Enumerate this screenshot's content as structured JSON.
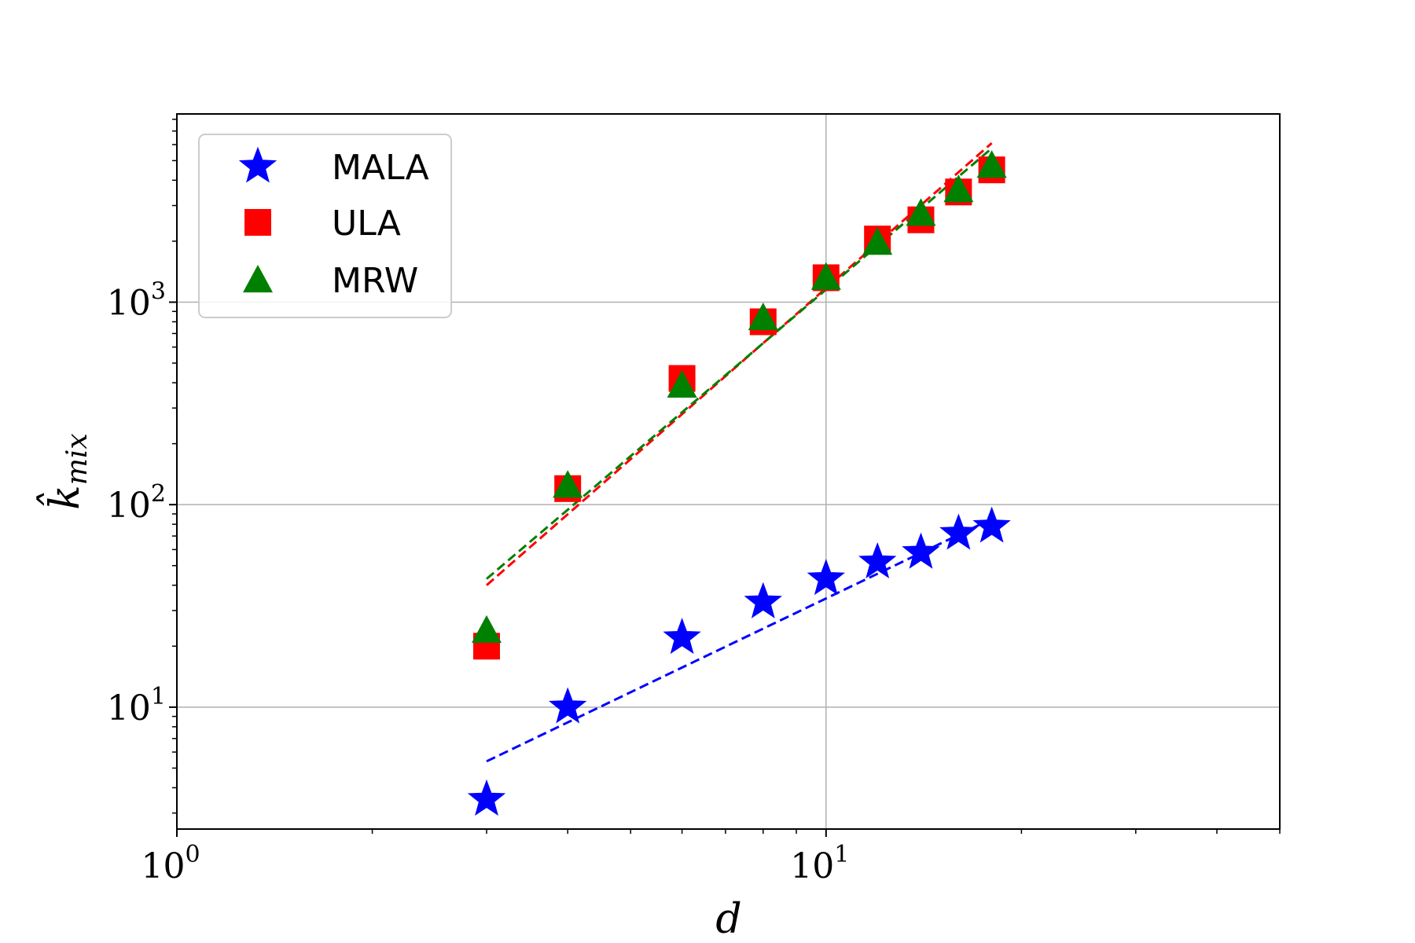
{
  "chart_data": {
    "type": "scatter",
    "xscale": "log",
    "yscale": "log",
    "xlabel": "d",
    "ylabel": "k̂",
    "ylabel_sub": "mix",
    "xlim": [
      1,
      50
    ],
    "ylim": [
      2.5,
      8500
    ],
    "grid": true,
    "legend_position": "top-left",
    "x_ticks": [
      {
        "value": 1,
        "base": "10",
        "exp": "0"
      },
      {
        "value": 10,
        "base": "10",
        "exp": "1"
      }
    ],
    "y_ticks": [
      {
        "value": 10,
        "base": "10",
        "exp": "1"
      },
      {
        "value": 100,
        "base": "10",
        "exp": "2"
      },
      {
        "value": 1000,
        "base": "10",
        "exp": "3"
      }
    ],
    "x_minor_ticks": [
      2,
      3,
      4,
      5,
      6,
      7,
      8,
      9,
      20,
      30,
      40,
      50
    ],
    "y_minor_ticks": [
      3,
      4,
      5,
      6,
      7,
      8,
      9,
      20,
      30,
      40,
      50,
      60,
      70,
      80,
      90,
      200,
      300,
      400,
      500,
      600,
      700,
      800,
      900,
      2000,
      3000,
      4000,
      5000,
      6000,
      7000,
      8000
    ],
    "series": [
      {
        "name": "MALA",
        "marker": "star",
        "color": "#0000ff",
        "x": [
          3,
          4,
          6,
          8,
          10,
          12,
          14,
          16,
          18
        ],
        "y": [
          3.5,
          10,
          22,
          33,
          43,
          52,
          58,
          72,
          78
        ],
        "fit": {
          "x": [
            3,
            18
          ],
          "y": [
            5.4,
            85
          ]
        }
      },
      {
        "name": "ULA",
        "marker": "square",
        "color": "#ff0000",
        "x": [
          3,
          4,
          6,
          8,
          10,
          12,
          14,
          16,
          18
        ],
        "y": [
          20,
          120,
          420,
          800,
          1320,
          2050,
          2550,
          3500,
          4500
        ],
        "fit": {
          "x": [
            3,
            18
          ],
          "y": [
            40,
            6100
          ]
        }
      },
      {
        "name": "MRW",
        "marker": "triangle",
        "color": "#008000",
        "x": [
          3,
          4,
          6,
          8,
          10,
          12,
          14,
          16,
          18
        ],
        "y": [
          24,
          125,
          390,
          840,
          1330,
          1980,
          2750,
          3600,
          4750
        ],
        "fit": {
          "x": [
            3,
            18
          ],
          "y": [
            43,
            5750
          ]
        }
      }
    ]
  }
}
